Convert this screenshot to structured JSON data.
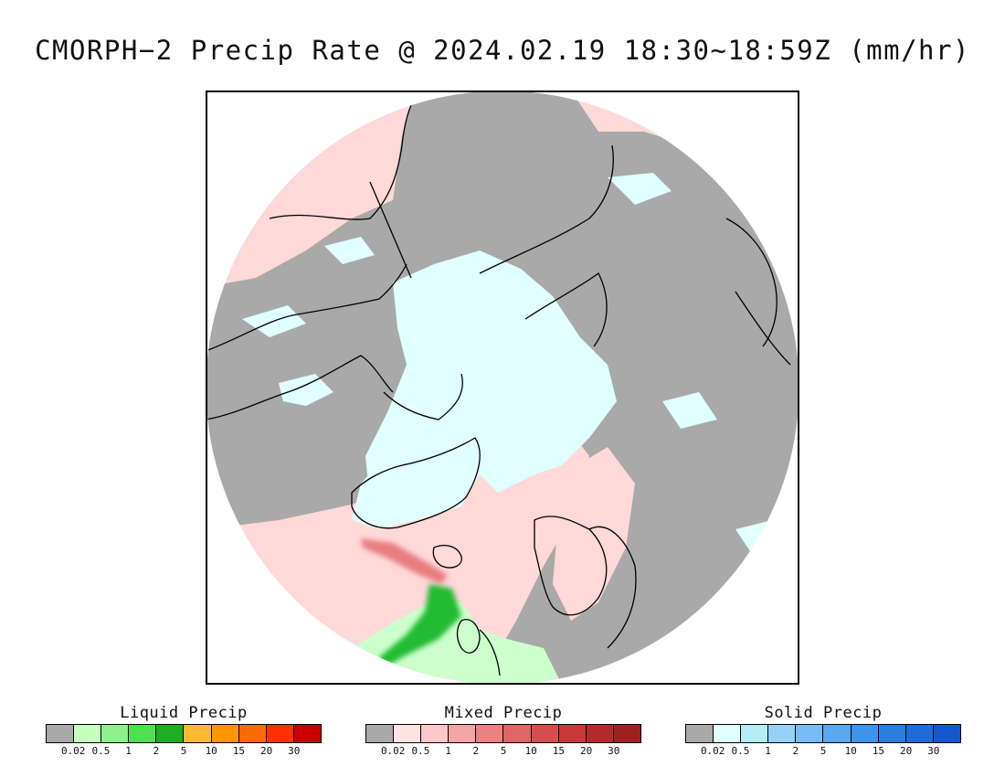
{
  "title": "CMORPH−2 Precip Rate @ 2024.02.19 18:30~18:59Z (mm/hr)",
  "map": {
    "projection": "north polar stereographic",
    "colors": {
      "no_precip": "#a9a9a9",
      "solid_light": "#e0ffff",
      "mixed_light": "#ffd8d8",
      "liquid_light": "#ccffcc",
      "liquid_heavy": "#22bb33",
      "mixed_band": "#e87d80",
      "coastline": "#000000"
    }
  },
  "legends": [
    {
      "title": "Liquid Precip",
      "ticks": [
        "0.02",
        "0.5",
        "1",
        "2",
        "5",
        "10",
        "15",
        "20",
        "30"
      ],
      "colors": [
        "#a9a9a9",
        "#c8ffc0",
        "#8ef08c",
        "#4fe04f",
        "#1eae23",
        "#ffb833",
        "#ff9600",
        "#ff6a00",
        "#ff3000",
        "#cc0000"
      ]
    },
    {
      "title": "Mixed Precip",
      "ticks": [
        "0.02",
        "0.5",
        "1",
        "2",
        "5",
        "10",
        "15",
        "20",
        "30"
      ],
      "colors": [
        "#a9a9a9",
        "#ffe4e4",
        "#ffc8c8",
        "#f4a5a5",
        "#ec8181",
        "#e06565",
        "#d74d4d",
        "#c83a3a",
        "#b42a2a",
        "#9e2222"
      ]
    },
    {
      "title": "Solid Precip",
      "ticks": [
        "0.02",
        "0.5",
        "1",
        "2",
        "5",
        "10",
        "15",
        "20",
        "30"
      ],
      "colors": [
        "#a9a9a9",
        "#e0ffff",
        "#b4ecf8",
        "#96d2f5",
        "#78bcf5",
        "#5aa8f0",
        "#3e94ea",
        "#2a7ee0",
        "#1e6cd8",
        "#1458cc"
      ]
    }
  ]
}
